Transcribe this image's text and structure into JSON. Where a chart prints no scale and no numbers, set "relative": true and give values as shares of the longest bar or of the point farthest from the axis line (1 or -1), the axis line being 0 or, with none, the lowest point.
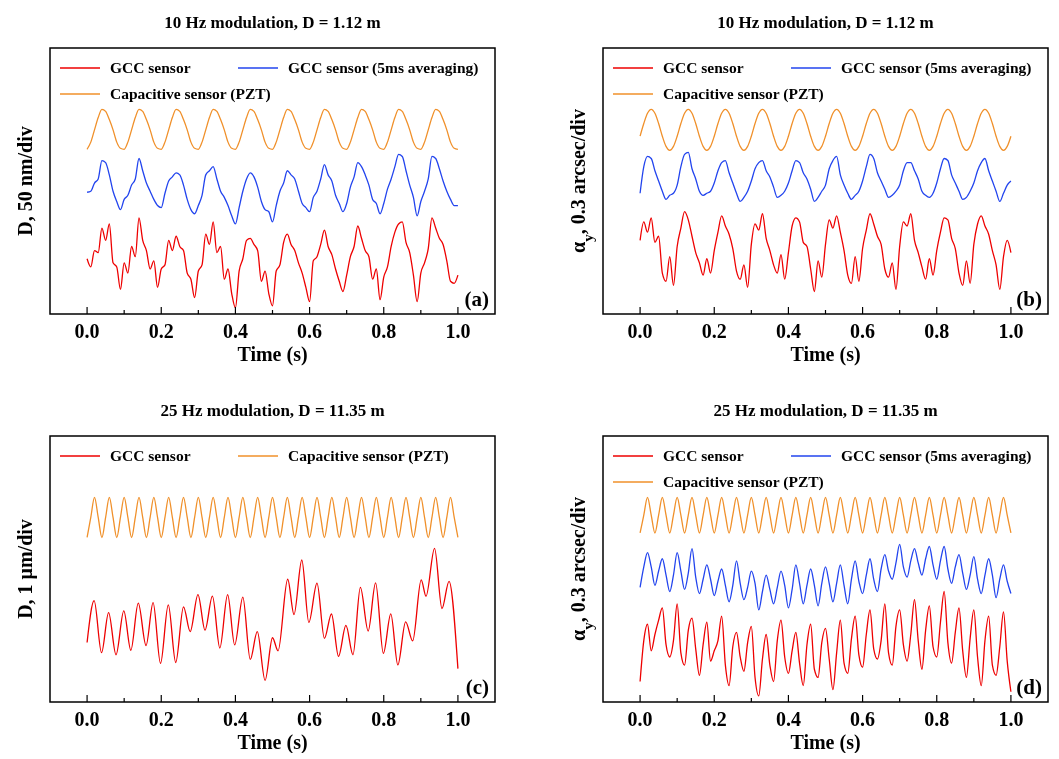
{
  "chart_data": [
    {
      "type": "line",
      "title": "10 Hz modulation, D = 1.12 m",
      "xlabel": "Time (s)",
      "ylabel": "D, 50 nm/div",
      "annotations": [
        "(a)"
      ],
      "relative": true,
      "legend": "top left",
      "xlim": [
        -0.1,
        1.1
      ],
      "xticks": [
        {
          "value": 0,
          "label": "0.0"
        },
        {
          "value": 0.1,
          "label": null
        },
        0.2,
        {
          "value": 0.3,
          "label": null
        },
        0.4,
        {
          "value": 0.5,
          "label": null
        },
        0.6,
        {
          "value": 0.7,
          "label": null
        },
        0.8,
        {
          "value": 0.9,
          "label": null
        },
        {
          "value": 1,
          "label": "1.0"
        }
      ],
      "x": [
        0,
        0.01,
        0.02,
        0.03,
        0.04,
        0.05,
        0.06,
        0.07,
        0.08,
        0.09,
        0.1,
        0.11,
        0.12,
        0.13,
        0.14,
        0.15,
        0.16,
        0.17,
        0.18,
        0.19,
        0.2,
        0.21,
        0.22,
        0.23,
        0.24,
        0.25,
        0.26,
        0.27,
        0.28,
        0.29,
        0.3,
        0.31,
        0.32,
        0.33,
        0.34,
        0.35,
        0.36,
        0.37,
        0.38,
        0.39,
        0.4,
        0.41,
        0.42,
        0.43,
        0.44,
        0.45,
        0.46,
        0.47,
        0.48,
        0.49,
        0.5,
        0.51,
        0.52,
        0.53,
        0.54,
        0.55,
        0.56,
        0.57,
        0.58,
        0.59,
        0.6,
        0.61,
        0.62,
        0.63,
        0.64,
        0.65,
        0.66,
        0.67,
        0.68,
        0.69,
        0.7,
        0.71,
        0.72,
        0.73,
        0.74,
        0.75,
        0.76,
        0.77,
        0.78,
        0.79,
        0.8,
        0.81,
        0.82,
        0.83,
        0.84,
        0.85,
        0.86,
        0.87,
        0.88,
        0.89,
        0.9,
        0.91,
        0.92,
        0.93,
        0.94,
        0.95,
        0.96,
        0.97,
        0.98,
        0.99,
        1
      ],
      "series": [
        {
          "name": "GCC sensor",
          "color": "#ee0000",
          "values": [
            0.27,
            0.23,
            0.31,
            0.3,
            0.42,
            0.36,
            0.44,
            0.25,
            0.23,
            0.12,
            0.25,
            0.2,
            0.33,
            0.28,
            0.47,
            0.36,
            0.31,
            0.22,
            0.26,
            0.13,
            0.22,
            0.24,
            0.36,
            0.31,
            0.38,
            0.33,
            0.31,
            0.2,
            0.17,
            0.08,
            0.21,
            0.24,
            0.39,
            0.34,
            0.45,
            0.3,
            0.33,
            0.17,
            0.22,
            0.1,
            0.03,
            0.21,
            0.27,
            0.36,
            0.37,
            0.34,
            0.31,
            0.16,
            0.21,
            0.1,
            0.04,
            0.21,
            0.24,
            0.35,
            0.39,
            0.34,
            0.31,
            0.25,
            0.2,
            0.13,
            0.06,
            0.26,
            0.28,
            0.34,
            0.41,
            0.33,
            0.29,
            0.22,
            0.16,
            0.11,
            0.19,
            0.28,
            0.33,
            0.43,
            0.37,
            0.31,
            0.28,
            0.17,
            0.22,
            0.07,
            0.18,
            0.23,
            0.33,
            0.4,
            0.44,
            0.45,
            0.35,
            0.3,
            0.19,
            0.06,
            0.2,
            0.25,
            0.32,
            0.47,
            0.42,
            0.37,
            0.34,
            0.26,
            0.16,
            0.15,
            0.19
          ]
        },
        {
          "name": "GCC sensor (5ms averaging)",
          "color": "#2244ee",
          "values": [
            0.595,
            0.6,
            0.64,
            0.66,
            0.75,
            0.74,
            0.68,
            0.6,
            0.55,
            0.51,
            0.56,
            0.58,
            0.63,
            0.66,
            0.76,
            0.7,
            0.64,
            0.6,
            0.56,
            0.53,
            0.52,
            0.59,
            0.65,
            0.67,
            0.69,
            0.68,
            0.63,
            0.56,
            0.51,
            0.49,
            0.53,
            0.58,
            0.68,
            0.7,
            0.72,
            0.66,
            0.6,
            0.57,
            0.53,
            0.48,
            0.44,
            0.52,
            0.6,
            0.66,
            0.69,
            0.67,
            0.62,
            0.55,
            0.51,
            0.5,
            0.45,
            0.53,
            0.6,
            0.64,
            0.7,
            0.68,
            0.66,
            0.6,
            0.54,
            0.52,
            0.5,
            0.57,
            0.6,
            0.66,
            0.73,
            0.68,
            0.65,
            0.58,
            0.54,
            0.5,
            0.54,
            0.62,
            0.67,
            0.74,
            0.72,
            0.68,
            0.63,
            0.56,
            0.54,
            0.49,
            0.54,
            0.61,
            0.66,
            0.72,
            0.78,
            0.77,
            0.7,
            0.63,
            0.57,
            0.48,
            0.55,
            0.6,
            0.66,
            0.77,
            0.76,
            0.71,
            0.65,
            0.6,
            0.56,
            0.53,
            0.53
          ]
        },
        {
          "name": "Capacitive sensor (PZT)",
          "color": "#f0902a",
          "values": [
            0.805,
            0.84,
            0.9,
            0.96,
            1,
            0.99,
            0.95,
            0.9,
            0.84,
            0.81,
            0.805,
            0.84,
            0.9,
            0.96,
            1,
            0.99,
            0.95,
            0.9,
            0.84,
            0.81,
            0.805,
            0.84,
            0.9,
            0.96,
            1,
            0.99,
            0.95,
            0.9,
            0.84,
            0.81,
            0.805,
            0.84,
            0.9,
            0.96,
            1,
            0.99,
            0.95,
            0.9,
            0.84,
            0.81,
            0.805,
            0.84,
            0.9,
            0.96,
            1,
            0.99,
            0.95,
            0.9,
            0.84,
            0.81,
            0.805,
            0.84,
            0.9,
            0.96,
            1,
            0.99,
            0.95,
            0.9,
            0.84,
            0.81,
            0.805,
            0.84,
            0.9,
            0.96,
            1,
            0.99,
            0.95,
            0.9,
            0.84,
            0.81,
            0.805,
            0.84,
            0.9,
            0.96,
            1,
            0.99,
            0.95,
            0.9,
            0.84,
            0.81,
            0.805,
            0.84,
            0.9,
            0.96,
            1,
            0.99,
            0.95,
            0.9,
            0.84,
            0.81,
            0.805,
            0.84,
            0.9,
            0.96,
            1,
            0.99,
            0.95,
            0.9,
            0.84,
            0.81,
            0.805
          ]
        }
      ]
    },
    {
      "type": "line",
      "title": "10 Hz modulation, D = 1.12 m",
      "xlabel": "Time (s)",
      "ylabel": "α$_{y}$, 0.3 arcsec/div",
      "annotations": [
        "(b)"
      ],
      "relative": true,
      "legend": "top left",
      "xlim": [
        -0.1,
        1.1
      ],
      "xticks": [
        {
          "value": 0,
          "label": "0.0"
        },
        {
          "value": 0.1,
          "label": null
        },
        0.2,
        {
          "value": 0.3,
          "label": null
        },
        0.4,
        {
          "value": 0.5,
          "label": null
        },
        0.6,
        {
          "value": 0.7,
          "label": null
        },
        0.8,
        {
          "value": 0.9,
          "label": null
        },
        {
          "value": 1,
          "label": "1.0"
        }
      ],
      "x": [
        0,
        0.01,
        0.02,
        0.03,
        0.04,
        0.05,
        0.06,
        0.07,
        0.08,
        0.09,
        0.1,
        0.11,
        0.12,
        0.13,
        0.14,
        0.15,
        0.16,
        0.17,
        0.18,
        0.19,
        0.2,
        0.21,
        0.22,
        0.23,
        0.24,
        0.25,
        0.26,
        0.27,
        0.28,
        0.29,
        0.3,
        0.31,
        0.32,
        0.33,
        0.34,
        0.35,
        0.36,
        0.37,
        0.38,
        0.39,
        0.4,
        0.41,
        0.42,
        0.43,
        0.44,
        0.45,
        0.46,
        0.47,
        0.48,
        0.49,
        0.5,
        0.51,
        0.52,
        0.53,
        0.54,
        0.55,
        0.56,
        0.57,
        0.58,
        0.59,
        0.6,
        0.61,
        0.62,
        0.63,
        0.64,
        0.65,
        0.66,
        0.67,
        0.68,
        0.69,
        0.7,
        0.71,
        0.72,
        0.73,
        0.74,
        0.75,
        0.76,
        0.77,
        0.78,
        0.79,
        0.8,
        0.81,
        0.82,
        0.83,
        0.84,
        0.85,
        0.86,
        0.87,
        0.88,
        0.89,
        0.9,
        0.91,
        0.92,
        0.93,
        0.94,
        0.95,
        0.96,
        0.97,
        0.98,
        0.99,
        1
      ],
      "series": [
        {
          "name": "GCC sensor",
          "color": "#ee0000",
          "values": [
            0.36,
            0.45,
            0.4,
            0.47,
            0.35,
            0.38,
            0.2,
            0.16,
            0.28,
            0.14,
            0.33,
            0.42,
            0.5,
            0.46,
            0.38,
            0.3,
            0.25,
            0.19,
            0.27,
            0.2,
            0.31,
            0.4,
            0.48,
            0.43,
            0.39,
            0.32,
            0.21,
            0.17,
            0.24,
            0.13,
            0.34,
            0.44,
            0.41,
            0.49,
            0.37,
            0.31,
            0.24,
            0.2,
            0.29,
            0.17,
            0.3,
            0.43,
            0.47,
            0.45,
            0.35,
            0.33,
            0.22,
            0.11,
            0.26,
            0.18,
            0.34,
            0.46,
            0.42,
            0.48,
            0.4,
            0.31,
            0.19,
            0.15,
            0.28,
            0.16,
            0.32,
            0.41,
            0.49,
            0.44,
            0.38,
            0.34,
            0.22,
            0.18,
            0.25,
            0.12,
            0.33,
            0.45,
            0.43,
            0.49,
            0.36,
            0.3,
            0.23,
            0.17,
            0.27,
            0.19,
            0.31,
            0.4,
            0.47,
            0.46,
            0.37,
            0.32,
            0.2,
            0.14,
            0.26,
            0.15,
            0.34,
            0.44,
            0.48,
            0.43,
            0.39,
            0.31,
            0.24,
            0.12,
            0.28,
            0.36,
            0.3
          ]
        },
        {
          "name": "GCC sensor (5ms averaging)",
          "color": "#2244ee",
          "values": [
            0.59,
            0.72,
            0.77,
            0.76,
            0.7,
            0.65,
            0.6,
            0.56,
            0.58,
            0.59,
            0.63,
            0.72,
            0.78,
            0.79,
            0.71,
            0.66,
            0.6,
            0.58,
            0.59,
            0.6,
            0.64,
            0.7,
            0.74,
            0.75,
            0.69,
            0.64,
            0.59,
            0.55,
            0.57,
            0.6,
            0.65,
            0.71,
            0.74,
            0.75,
            0.7,
            0.67,
            0.62,
            0.57,
            0.58,
            0.6,
            0.64,
            0.7,
            0.75,
            0.74,
            0.69,
            0.66,
            0.61,
            0.55,
            0.57,
            0.6,
            0.63,
            0.71,
            0.75,
            0.77,
            0.68,
            0.63,
            0.59,
            0.56,
            0.58,
            0.6,
            0.65,
            0.72,
            0.78,
            0.76,
            0.69,
            0.65,
            0.61,
            0.57,
            0.58,
            0.6,
            0.63,
            0.7,
            0.74,
            0.74,
            0.7,
            0.66,
            0.6,
            0.58,
            0.57,
            0.59,
            0.64,
            0.71,
            0.76,
            0.75,
            0.68,
            0.64,
            0.6,
            0.56,
            0.57,
            0.6,
            0.64,
            0.7,
            0.74,
            0.76,
            0.7,
            0.65,
            0.6,
            0.55,
            0.59,
            0.63,
            0.65
          ]
        },
        {
          "name": "Capacitive sensor (PZT)",
          "color": "#f0902a",
          "values": [
            0.869,
            0.931,
            0.981,
            1,
            0.981,
            0.931,
            0.869,
            0.819,
            0.8,
            0.819,
            0.869,
            0.931,
            0.981,
            1,
            0.981,
            0.931,
            0.869,
            0.819,
            0.8,
            0.819,
            0.869,
            0.931,
            0.981,
            1,
            0.981,
            0.931,
            0.869,
            0.819,
            0.8,
            0.819,
            0.869,
            0.931,
            0.981,
            1,
            0.981,
            0.931,
            0.869,
            0.819,
            0.8,
            0.819,
            0.869,
            0.931,
            0.981,
            1,
            0.981,
            0.931,
            0.869,
            0.819,
            0.8,
            0.819,
            0.869,
            0.931,
            0.981,
            1,
            0.981,
            0.931,
            0.869,
            0.819,
            0.8,
            0.819,
            0.869,
            0.931,
            0.981,
            1,
            0.981,
            0.931,
            0.869,
            0.819,
            0.8,
            0.819,
            0.869,
            0.931,
            0.981,
            1,
            0.981,
            0.931,
            0.869,
            0.819,
            0.8,
            0.819,
            0.869,
            0.931,
            0.981,
            1,
            0.981,
            0.931,
            0.869,
            0.819,
            0.8,
            0.819,
            0.869,
            0.931,
            0.981,
            1,
            0.981,
            0.931,
            0.869,
            0.819,
            0.8,
            0.819,
            0.869
          ]
        }
      ]
    },
    {
      "type": "line",
      "title": "25 Hz modulation, D = 11.35 m",
      "xlabel": "Time (s)",
      "ylabel": "D, 1 μm/div",
      "annotations": [
        "(c)"
      ],
      "relative": true,
      "legend": "top left",
      "xlim": [
        -0.1,
        1.1
      ],
      "xticks": [
        {
          "value": 0,
          "label": "0.0"
        },
        {
          "value": 0.1,
          "label": null
        },
        0.2,
        {
          "value": 0.3,
          "label": null
        },
        0.4,
        {
          "value": 0.5,
          "label": null
        },
        0.6,
        {
          "value": 0.7,
          "label": null
        },
        0.8,
        {
          "value": 0.9,
          "label": null
        },
        {
          "value": 1,
          "label": "1.0"
        }
      ],
      "x": [
        0,
        0.01,
        0.02,
        0.03,
        0.04,
        0.05,
        0.06,
        0.07,
        0.08,
        0.09,
        0.1,
        0.11,
        0.12,
        0.13,
        0.14,
        0.15,
        0.16,
        0.17,
        0.18,
        0.19,
        0.2,
        0.21,
        0.22,
        0.23,
        0.24,
        0.25,
        0.26,
        0.27,
        0.28,
        0.29,
        0.3,
        0.31,
        0.32,
        0.33,
        0.34,
        0.35,
        0.36,
        0.37,
        0.38,
        0.39,
        0.4,
        0.41,
        0.42,
        0.43,
        0.44,
        0.45,
        0.46,
        0.47,
        0.48,
        0.49,
        0.5,
        0.51,
        0.52,
        0.53,
        0.54,
        0.55,
        0.56,
        0.57,
        0.58,
        0.59,
        0.6,
        0.61,
        0.62,
        0.63,
        0.64,
        0.65,
        0.66,
        0.67,
        0.68,
        0.69,
        0.7,
        0.71,
        0.72,
        0.73,
        0.74,
        0.75,
        0.76,
        0.77,
        0.78,
        0.79,
        0.8,
        0.81,
        0.82,
        0.83,
        0.84,
        0.85,
        0.86,
        0.87,
        0.88,
        0.89,
        0.9,
        0.91,
        0.92,
        0.93,
        0.94,
        0.95,
        0.96,
        0.97,
        0.98,
        0.99,
        1
      ],
      "series": [
        {
          "name": "GCC sensor",
          "color": "#ee0000",
          "x": [
            0,
            0.019,
            0.039,
            0.058,
            0.078,
            0.099,
            0.118,
            0.138,
            0.159,
            0.178,
            0.198,
            0.219,
            0.239,
            0.26,
            0.278,
            0.299,
            0.318,
            0.338,
            0.358,
            0.379,
            0.398,
            0.42,
            0.44,
            0.459,
            0.48,
            0.5,
            0.515,
            0.541,
            0.558,
            0.579,
            0.598,
            0.62,
            0.64,
            0.659,
            0.678,
            0.698,
            0.717,
            0.737,
            0.758,
            0.778,
            0.799,
            0.819,
            0.838,
            0.859,
            0.878,
            0.901,
            0.914,
            0.937,
            0.957,
            0.976,
            1
          ],
          "values": [
            0.291,
            0.495,
            0.241,
            0.437,
            0.231,
            0.445,
            0.253,
            0.483,
            0.276,
            0.486,
            0.189,
            0.475,
            0.193,
            0.465,
            0.344,
            0.525,
            0.351,
            0.517,
            0.264,
            0.525,
            0.279,
            0.513,
            0.208,
            0.344,
            0.106,
            0.314,
            0.25,
            0.6,
            0.427,
            0.694,
            0.389,
            0.581,
            0.311,
            0.43,
            0.223,
            0.374,
            0.231,
            0.56,
            0.347,
            0.582,
            0.238,
            0.431,
            0.181,
            0.392,
            0.299,
            0.597,
            0.517,
            0.751,
            0.457,
            0.59,
            0.163
          ]
        },
        {
          "name": "Capacitive sensor (PZT)",
          "color": "#f0902a",
          "values": [
            0.804,
            0.902,
            1,
            0.902,
            0.804,
            0.902,
            1,
            0.902,
            0.804,
            0.902,
            1,
            0.902,
            0.804,
            0.902,
            1,
            0.902,
            0.804,
            0.902,
            1,
            0.902,
            0.804,
            0.902,
            1,
            0.902,
            0.804,
            0.902,
            1,
            0.902,
            0.804,
            0.902,
            1,
            0.902,
            0.804,
            0.902,
            1,
            0.902,
            0.804,
            0.902,
            1,
            0.902,
            0.804,
            0.902,
            1,
            0.902,
            0.804,
            0.902,
            1,
            0.902,
            0.804,
            0.902,
            1,
            0.902,
            0.804,
            0.902,
            1,
            0.902,
            0.804,
            0.902,
            1,
            0.902,
            0.804,
            0.902,
            1,
            0.902,
            0.804,
            0.902,
            1,
            0.902,
            0.804,
            0.902,
            1,
            0.902,
            0.804,
            0.902,
            1,
            0.902,
            0.804,
            0.902,
            1,
            0.902,
            0.804,
            0.902,
            1,
            0.902,
            0.804,
            0.902,
            1,
            0.902,
            0.804,
            0.902,
            1,
            0.902,
            0.804,
            0.902,
            1,
            0.902,
            0.804,
            0.902,
            1,
            0.902,
            0.804
          ]
        }
      ]
    },
    {
      "type": "line",
      "title": "25 Hz modulation, D = 11.35 m",
      "xlabel": "Time (s)",
      "ylabel": "α$_{y}$, 0.3 arcsec/div",
      "annotations": [
        "(d)"
      ],
      "relative": true,
      "legend": "top left",
      "xlim": [
        -0.1,
        1.1
      ],
      "xticks": [
        {
          "value": 0,
          "label": "0.0"
        },
        {
          "value": 0.1,
          "label": null
        },
        0.2,
        {
          "value": 0.3,
          "label": null
        },
        0.4,
        {
          "value": 0.5,
          "label": null
        },
        0.6,
        {
          "value": 0.7,
          "label": null
        },
        0.8,
        {
          "value": 0.9,
          "label": null
        },
        {
          "value": 1,
          "label": "1.0"
        }
      ],
      "x": [
        0,
        0.01,
        0.02,
        0.03,
        0.04,
        0.05,
        0.06,
        0.07,
        0.08,
        0.09,
        0.1,
        0.11,
        0.12,
        0.13,
        0.14,
        0.15,
        0.16,
        0.17,
        0.18,
        0.19,
        0.2,
        0.21,
        0.22,
        0.23,
        0.24,
        0.25,
        0.26,
        0.27,
        0.28,
        0.29,
        0.3,
        0.31,
        0.32,
        0.33,
        0.34,
        0.35,
        0.36,
        0.37,
        0.38,
        0.39,
        0.4,
        0.41,
        0.42,
        0.43,
        0.44,
        0.45,
        0.46,
        0.47,
        0.48,
        0.49,
        0.5,
        0.51,
        0.52,
        0.53,
        0.54,
        0.55,
        0.56,
        0.57,
        0.58,
        0.59,
        0.6,
        0.61,
        0.62,
        0.63,
        0.64,
        0.65,
        0.66,
        0.67,
        0.68,
        0.69,
        0.7,
        0.71,
        0.72,
        0.73,
        0.74,
        0.75,
        0.76,
        0.77,
        0.78,
        0.79,
        0.8,
        0.81,
        0.82,
        0.83,
        0.84,
        0.85,
        0.86,
        0.87,
        0.88,
        0.89,
        0.9,
        0.91,
        0.92,
        0.93,
        0.94,
        0.95,
        0.96,
        0.97,
        0.98,
        0.99,
        1
      ],
      "series": [
        {
          "name": "GCC sensor",
          "color": "#ee0000",
          "values": [
            0.1,
            0.3,
            0.38,
            0.25,
            0.33,
            0.4,
            0.46,
            0.28,
            0.22,
            0.3,
            0.48,
            0.24,
            0.18,
            0.35,
            0.41,
            0.26,
            0.13,
            0.28,
            0.39,
            0.2,
            0.25,
            0.3,
            0.42,
            0.18,
            0.08,
            0.27,
            0.34,
            0.22,
            0.15,
            0.29,
            0.37,
            0.12,
            0.03,
            0.21,
            0.33,
            0.18,
            0.1,
            0.3,
            0.4,
            0.22,
            0.14,
            0.25,
            0.34,
            0.19,
            0.08,
            0.28,
            0.38,
            0.16,
            0.12,
            0.29,
            0.36,
            0.21,
            0.06,
            0.24,
            0.4,
            0.19,
            0.14,
            0.31,
            0.42,
            0.23,
            0.17,
            0.33,
            0.45,
            0.26,
            0.21,
            0.3,
            0.48,
            0.24,
            0.18,
            0.37,
            0.45,
            0.28,
            0.2,
            0.33,
            0.5,
            0.3,
            0.16,
            0.35,
            0.47,
            0.27,
            0.22,
            0.39,
            0.54,
            0.29,
            0.19,
            0.34,
            0.46,
            0.25,
            0.12,
            0.31,
            0.45,
            0.22,
            0.08,
            0.3,
            0.42,
            0.18,
            0.13,
            0.27,
            0.44,
            0.2,
            0.05
          ]
        },
        {
          "name": "GCC sensor (5ms averaging)",
          "color": "#2244ee",
          "values": [
            0.56,
            0.66,
            0.73,
            0.66,
            0.57,
            0.64,
            0.7,
            0.62,
            0.54,
            0.62,
            0.73,
            0.64,
            0.55,
            0.63,
            0.75,
            0.61,
            0.53,
            0.6,
            0.67,
            0.6,
            0.52,
            0.59,
            0.65,
            0.57,
            0.49,
            0.57,
            0.69,
            0.58,
            0.5,
            0.56,
            0.64,
            0.58,
            0.45,
            0.54,
            0.62,
            0.55,
            0.48,
            0.56,
            0.64,
            0.57,
            0.46,
            0.55,
            0.67,
            0.58,
            0.48,
            0.57,
            0.65,
            0.57,
            0.47,
            0.58,
            0.66,
            0.58,
            0.49,
            0.58,
            0.67,
            0.57,
            0.48,
            0.6,
            0.69,
            0.59,
            0.53,
            0.62,
            0.7,
            0.6,
            0.54,
            0.65,
            0.72,
            0.64,
            0.6,
            0.68,
            0.77,
            0.66,
            0.61,
            0.69,
            0.75,
            0.68,
            0.62,
            0.7,
            0.76,
            0.67,
            0.6,
            0.69,
            0.76,
            0.65,
            0.58,
            0.66,
            0.72,
            0.63,
            0.55,
            0.62,
            0.71,
            0.6,
            0.53,
            0.62,
            0.7,
            0.62,
            0.51,
            0.6,
            0.67,
            0.59,
            0.53
          ]
        },
        {
          "name": "Capacitive sensor (PZT)",
          "color": "#f0902a",
          "values": [
            0.826,
            0.913,
            1,
            0.913,
            0.826,
            0.913,
            1,
            0.913,
            0.826,
            0.913,
            1,
            0.913,
            0.826,
            0.913,
            1,
            0.913,
            0.826,
            0.913,
            1,
            0.913,
            0.826,
            0.913,
            1,
            0.913,
            0.826,
            0.913,
            1,
            0.913,
            0.826,
            0.913,
            1,
            0.913,
            0.826,
            0.913,
            1,
            0.913,
            0.826,
            0.913,
            1,
            0.913,
            0.826,
            0.913,
            1,
            0.913,
            0.826,
            0.913,
            1,
            0.913,
            0.826,
            0.913,
            1,
            0.913,
            0.826,
            0.913,
            1,
            0.913,
            0.826,
            0.913,
            1,
            0.913,
            0.826,
            0.913,
            1,
            0.913,
            0.826,
            0.913,
            1,
            0.913,
            0.826,
            0.913,
            1,
            0.913,
            0.826,
            0.913,
            1,
            0.913,
            0.826,
            0.913,
            1,
            0.913,
            0.826,
            0.913,
            1,
            0.913,
            0.826,
            0.913,
            1,
            0.913,
            0.826,
            0.913,
            1,
            0.913,
            0.826,
            0.913,
            1,
            0.913,
            0.826,
            0.913,
            1,
            0.913,
            0.826
          ]
        }
      ]
    }
  ]
}
